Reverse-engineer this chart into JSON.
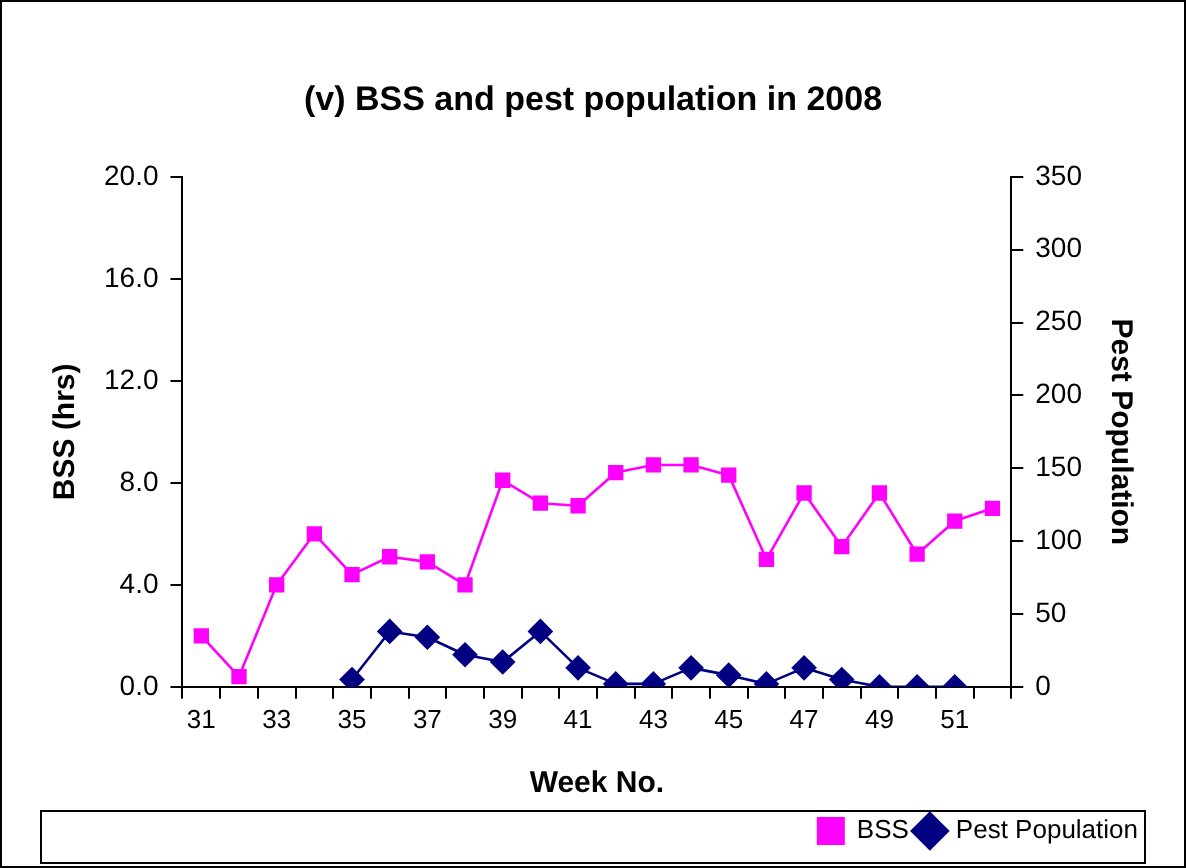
{
  "chart_data": {
    "type": "line",
    "title": "(v) BSS and pest population in 2008",
    "xlabel": "Week No.",
    "ylabel": "BSS (hrs)",
    "y2label": "Pest Population",
    "categories": [
      "31",
      null,
      "33",
      null,
      "35",
      null,
      "37",
      null,
      "39",
      null,
      "41",
      null,
      "43",
      null,
      "45",
      null,
      "47",
      null,
      "49",
      null,
      "51",
      null
    ],
    "series": [
      {
        "name": "BSS",
        "color": "#ff00ff",
        "marker": "square",
        "values": [
          2.0,
          0.4,
          4.0,
          6.0,
          4.4,
          5.1,
          4.9,
          4.0,
          8.1,
          7.2,
          7.1,
          8.4,
          8.7,
          8.7,
          8.3,
          5.0,
          7.6,
          5.5,
          7.6,
          5.2,
          6.5,
          7.0
        ]
      },
      {
        "name": "Pest Population",
        "color": "#000080",
        "marker": "diamond",
        "axis": "y2",
        "values": [
          null,
          null,
          null,
          null,
          5,
          38,
          34,
          22,
          17,
          38,
          13,
          2,
          2,
          13,
          8,
          2,
          13,
          5,
          0,
          0,
          0,
          null
        ]
      }
    ],
    "ylim": [
      0,
      20
    ],
    "yticks": [
      {
        "value": 0,
        "label": "0.0"
      },
      {
        "value": 4,
        "label": "4.0"
      },
      {
        "value": 8,
        "label": "8.0"
      },
      {
        "value": 12,
        "label": "12.0"
      },
      {
        "value": 16,
        "label": "16.0"
      },
      {
        "value": 20,
        "label": "20.0"
      }
    ],
    "y2lim": [
      0,
      350
    ],
    "y2ticks": [
      0,
      50,
      100,
      150,
      200,
      250,
      300,
      350
    ],
    "grid": false,
    "legend": "bottom right"
  }
}
